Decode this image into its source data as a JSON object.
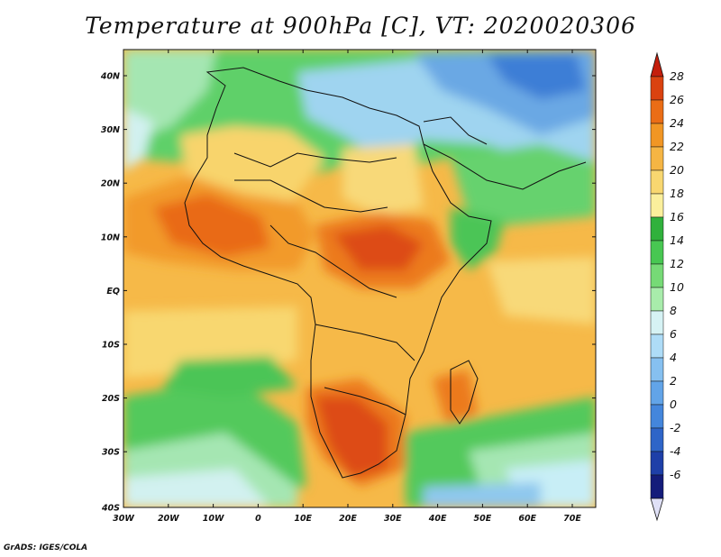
{
  "title": "Temperature at 900hPa [C], VT: 2020020306",
  "credit": "GrADS: IGES/COLA",
  "lat_labels": [
    "40N",
    "30N",
    "20N",
    "10N",
    "EQ",
    "10S",
    "20S",
    "30S",
    "40S"
  ],
  "lon_labels": [
    "30W",
    "20W",
    "10W",
    "0",
    "10E",
    "20E",
    "30E",
    "40E",
    "50E",
    "60E",
    "70E"
  ],
  "colorbar": {
    "labels": [
      "28",
      "26",
      "24",
      "22",
      "20",
      "18",
      "16",
      "14",
      "12",
      "10",
      "8",
      "6",
      "4",
      "2",
      "0",
      "-2",
      "-4",
      "-6"
    ],
    "colors": [
      "#ffffff",
      "#141c7a",
      "#1e3fa8",
      "#2e65c8",
      "#4486dc",
      "#62a4e8",
      "#86c0f0",
      "#aedcf7",
      "#d6f2f4",
      "#a8ecab",
      "#76da76",
      "#48c752",
      "#30b13c",
      "#fbef9c",
      "#f8d770",
      "#f5b544",
      "#f19624",
      "#ea6d16",
      "#da4210",
      "#c41e0c"
    ]
  }
}
